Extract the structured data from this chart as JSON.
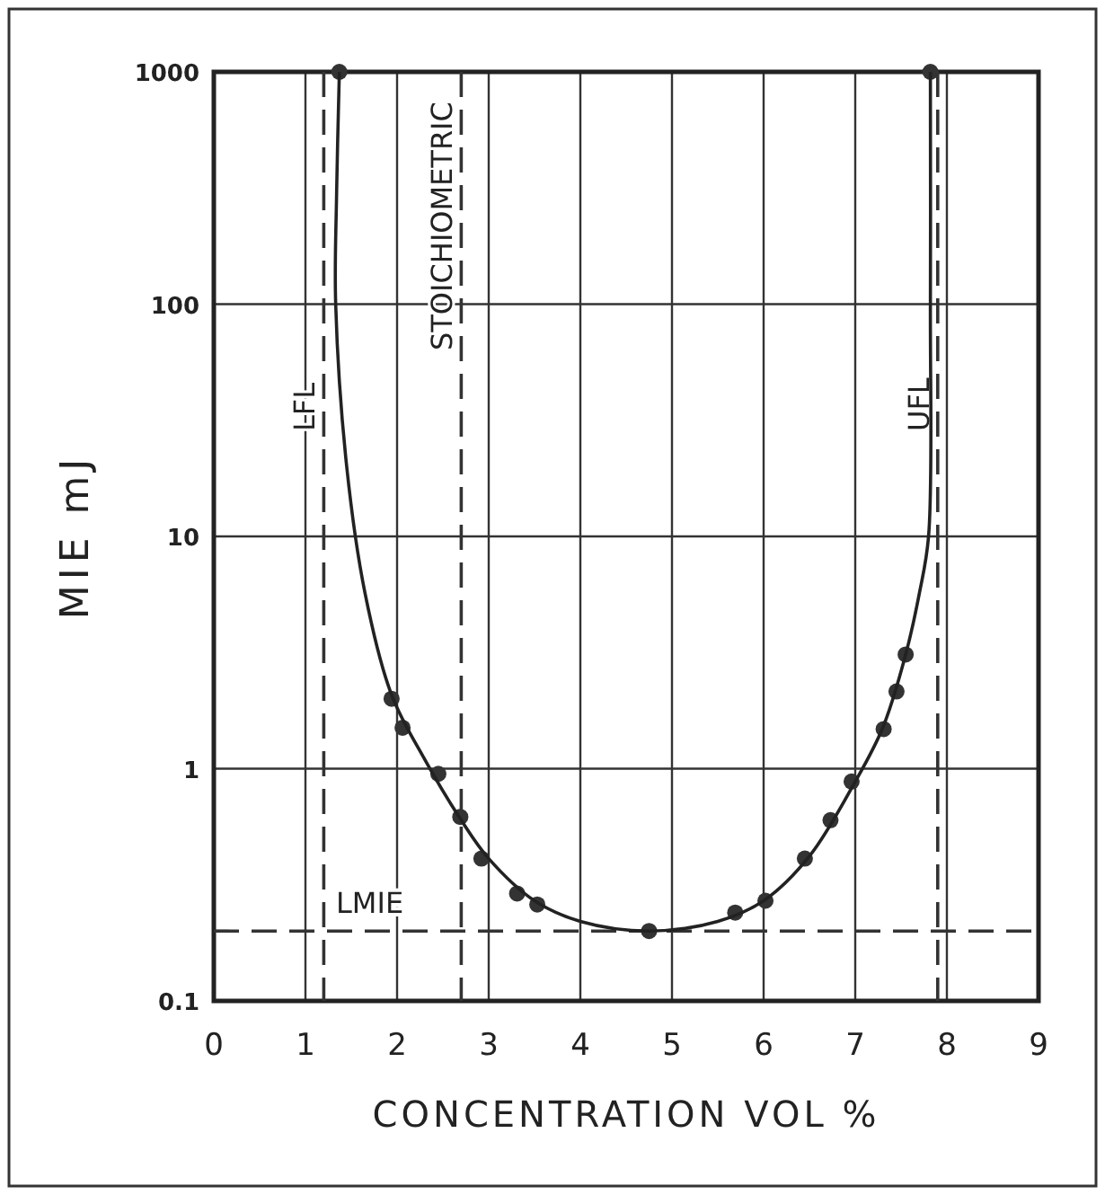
{
  "chart_data": {
    "type": "scatter",
    "xlabel": "CONCENTRATION VOL %",
    "ylabel": "MIE mJ",
    "log": "y",
    "grid": true,
    "xlim": [
      0,
      9
    ],
    "xticks": [
      0,
      1,
      2,
      3,
      4,
      5,
      6,
      7,
      8,
      9
    ],
    "ylim": [
      0.1,
      1000
    ],
    "yticks": [
      0.1,
      1,
      10,
      100,
      1000
    ],
    "series": [
      {
        "marker": "circle",
        "color": "#333333",
        "x": [
          1.37,
          1.94,
          2.06,
          2.45,
          2.69,
          2.92,
          3.31,
          3.53,
          4.75,
          5.69,
          6.02,
          6.45,
          6.73,
          6.96,
          7.31,
          7.45,
          7.55,
          7.82
        ],
        "values": [
          1000,
          2,
          1.5,
          0.95,
          0.62,
          0.41,
          0.29,
          0.26,
          0.2,
          0.24,
          0.27,
          0.41,
          0.6,
          0.88,
          1.48,
          2.15,
          3.1,
          1000
        ]
      },
      {
        "type": "line",
        "color": "#222222",
        "line_style": "solid",
        "x": [
          1.37,
          1.34,
          1.33,
          1.45,
          1.65,
          1.94,
          2.3,
          2.7,
          3.0,
          3.5,
          4.0,
          4.75,
          5.5,
          6.0,
          6.5,
          7.0,
          7.3,
          7.55,
          7.7,
          7.8,
          7.82,
          7.82
        ],
        "values": [
          1000,
          300,
          100,
          20,
          5.7,
          2.08,
          1.1,
          0.6,
          0.41,
          0.27,
          0.22,
          0.2,
          0.22,
          0.27,
          0.42,
          0.88,
          1.5,
          3.1,
          5.7,
          10,
          100,
          1000
        ]
      }
    ],
    "ref_lines": [
      {
        "axis": "x",
        "value": 1.2,
        "label": "LFL",
        "line_style": "dashed",
        "color": "#333333"
      },
      {
        "axis": "x",
        "value": 2.7,
        "label": "STOICHIOMETRIC",
        "line_style": "dashed",
        "color": "#333333"
      },
      {
        "axis": "x",
        "value": 7.9,
        "label": "UFL",
        "line_style": "dashed",
        "color": "#333333"
      },
      {
        "axis": "y",
        "value": 0.2,
        "label": "LMIE",
        "line_style": "dashed",
        "color": "#333333"
      }
    ]
  }
}
